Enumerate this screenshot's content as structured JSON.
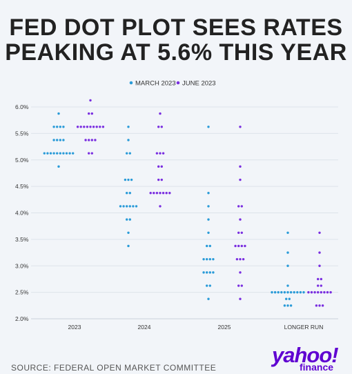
{
  "headline": {
    "line1": "FED DOT PLOT SEES RATES",
    "line2": "PEAKING AT 5.6% THIS YEAR"
  },
  "source": "SOURCE: FEDERAL OPEN MARKET COMMITTEE",
  "logo": {
    "word": "yahoo!",
    "sub": "finance"
  },
  "colors": {
    "march": "#2a9bd8",
    "june": "#7a2ee0"
  },
  "chart_data": {
    "type": "scatter",
    "title": "",
    "xlabel": "",
    "ylabel": "",
    "categories": [
      "2023",
      "2024",
      "2025",
      "LONGER RUN"
    ],
    "yticks": [
      "6.0%",
      "5.5%",
      "5.0%",
      "4.5%",
      "4.0%",
      "3.5%",
      "3.0%",
      "2.5%",
      "2.0%"
    ],
    "ylim": [
      2.0,
      6.0
    ],
    "grid": true,
    "legend_position": "top-center",
    "series": [
      {
        "name": "MARCH 2023",
        "color": "#2a9bd8",
        "points": [
          {
            "category": "2023",
            "y": 5.875,
            "count": 1
          },
          {
            "category": "2023",
            "y": 5.625,
            "count": 4
          },
          {
            "category": "2023",
            "y": 5.375,
            "count": 4
          },
          {
            "category": "2023",
            "y": 5.125,
            "count": 10
          },
          {
            "category": "2023",
            "y": 4.875,
            "count": 1
          },
          {
            "category": "2024",
            "y": 5.625,
            "count": 1
          },
          {
            "category": "2024",
            "y": 5.375,
            "count": 1
          },
          {
            "category": "2024",
            "y": 5.125,
            "count": 2
          },
          {
            "category": "2024",
            "y": 4.625,
            "count": 3
          },
          {
            "category": "2024",
            "y": 4.375,
            "count": 2
          },
          {
            "category": "2024",
            "y": 4.125,
            "count": 6
          },
          {
            "category": "2024",
            "y": 3.875,
            "count": 2
          },
          {
            "category": "2024",
            "y": 3.625,
            "count": 1
          },
          {
            "category": "2024",
            "y": 3.375,
            "count": 1
          },
          {
            "category": "2025",
            "y": 5.625,
            "count": 1
          },
          {
            "category": "2025",
            "y": 4.375,
            "count": 1
          },
          {
            "category": "2025",
            "y": 4.125,
            "count": 1
          },
          {
            "category": "2025",
            "y": 3.875,
            "count": 1
          },
          {
            "category": "2025",
            "y": 3.625,
            "count": 1
          },
          {
            "category": "2025",
            "y": 3.375,
            "count": 2
          },
          {
            "category": "2025",
            "y": 3.125,
            "count": 4
          },
          {
            "category": "2025",
            "y": 2.875,
            "count": 4
          },
          {
            "category": "2025",
            "y": 2.625,
            "count": 2
          },
          {
            "category": "2025",
            "y": 2.375,
            "count": 1
          },
          {
            "category": "LONGER RUN",
            "y": 3.625,
            "count": 1
          },
          {
            "category": "LONGER RUN",
            "y": 3.25,
            "count": 1
          },
          {
            "category": "LONGER RUN",
            "y": 3.0,
            "count": 1
          },
          {
            "category": "LONGER RUN",
            "y": 2.625,
            "count": 1
          },
          {
            "category": "LONGER RUN",
            "y": 2.5,
            "count": 11
          },
          {
            "category": "LONGER RUN",
            "y": 2.375,
            "count": 2
          },
          {
            "category": "LONGER RUN",
            "y": 2.25,
            "count": 3
          }
        ]
      },
      {
        "name": "JUNE 2023",
        "color": "#7a2ee0",
        "points": [
          {
            "category": "2023",
            "y": 6.125,
            "count": 1
          },
          {
            "category": "2023",
            "y": 5.875,
            "count": 2
          },
          {
            "category": "2023",
            "y": 5.625,
            "count": 9
          },
          {
            "category": "2023",
            "y": 5.375,
            "count": 4
          },
          {
            "category": "2023",
            "y": 5.125,
            "count": 2
          },
          {
            "category": "2024",
            "y": 5.875,
            "count": 1
          },
          {
            "category": "2024",
            "y": 5.625,
            "count": 2
          },
          {
            "category": "2024",
            "y": 5.125,
            "count": 3
          },
          {
            "category": "2024",
            "y": 4.875,
            "count": 2
          },
          {
            "category": "2024",
            "y": 4.625,
            "count": 2
          },
          {
            "category": "2024",
            "y": 4.375,
            "count": 7
          },
          {
            "category": "2024",
            "y": 4.125,
            "count": 1
          },
          {
            "category": "2025",
            "y": 5.625,
            "count": 1
          },
          {
            "category": "2025",
            "y": 4.875,
            "count": 1
          },
          {
            "category": "2025",
            "y": 4.625,
            "count": 1
          },
          {
            "category": "2025",
            "y": 4.125,
            "count": 2
          },
          {
            "category": "2025",
            "y": 3.875,
            "count": 1
          },
          {
            "category": "2025",
            "y": 3.625,
            "count": 2
          },
          {
            "category": "2025",
            "y": 3.375,
            "count": 4
          },
          {
            "category": "2025",
            "y": 3.125,
            "count": 3
          },
          {
            "category": "2025",
            "y": 2.875,
            "count": 1
          },
          {
            "category": "2025",
            "y": 2.625,
            "count": 2
          },
          {
            "category": "2025",
            "y": 2.375,
            "count": 1
          },
          {
            "category": "LONGER RUN",
            "y": 3.625,
            "count": 1
          },
          {
            "category": "LONGER RUN",
            "y": 3.25,
            "count": 1
          },
          {
            "category": "LONGER RUN",
            "y": 3.0,
            "count": 1
          },
          {
            "category": "LONGER RUN",
            "y": 2.75,
            "count": 2
          },
          {
            "category": "LONGER RUN",
            "y": 2.625,
            "count": 2
          },
          {
            "category": "LONGER RUN",
            "y": 2.5,
            "count": 8
          },
          {
            "category": "LONGER RUN",
            "y": 2.25,
            "count": 3
          }
        ]
      }
    ]
  }
}
